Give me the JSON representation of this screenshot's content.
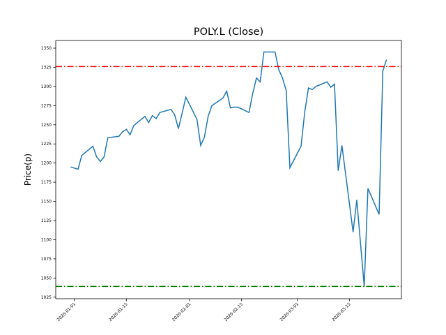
{
  "chart_data": {
    "type": "line",
    "title": "POLY.L (Close)",
    "y_label": "Price(p)",
    "x": [
      "2019-12-31",
      "2020-01-02",
      "2020-01-03",
      "2020-01-06",
      "2020-01-07",
      "2020-01-08",
      "2020-01-09",
      "2020-01-10",
      "2020-01-13",
      "2020-01-14",
      "2020-01-15",
      "2020-01-16",
      "2020-01-17",
      "2020-01-20",
      "2020-01-21",
      "2020-01-22",
      "2020-01-23",
      "2020-01-24",
      "2020-01-27",
      "2020-01-28",
      "2020-01-29",
      "2020-01-30",
      "2020-01-31",
      "2020-02-03",
      "2020-02-04",
      "2020-02-05",
      "2020-02-06",
      "2020-02-07",
      "2020-02-10",
      "2020-02-11",
      "2020-02-12",
      "2020-02-13",
      "2020-02-14",
      "2020-02-17",
      "2020-02-18",
      "2020-02-19",
      "2020-02-20",
      "2020-02-21",
      "2020-02-24",
      "2020-02-25",
      "2020-02-26",
      "2020-02-27",
      "2020-02-28",
      "2020-03-02",
      "2020-03-03",
      "2020-03-04",
      "2020-03-05",
      "2020-03-06",
      "2020-03-09",
      "2020-03-10",
      "2020-03-11",
      "2020-03-12",
      "2020-03-13",
      "2020-03-16",
      "2020-03-17",
      "2020-03-18",
      "2020-03-19",
      "2020-03-20",
      "2020-03-23",
      "2020-03-24",
      "2020-03-25"
    ],
    "series": [
      {
        "name": "Close",
        "color": "#1f77b4",
        "values": [
          1195,
          1192,
          1210,
          1222,
          1208,
          1202,
          1208,
          1233,
          1235,
          1241,
          1244,
          1237,
          1249,
          1261,
          1253,
          1262,
          1258,
          1266,
          1270,
          1263,
          1245,
          1265,
          1286,
          1257,
          1223,
          1234,
          1261,
          1275,
          1285,
          1294,
          1272,
          1273,
          1273,
          1266,
          1291,
          1311,
          1306,
          1345,
          1345,
          1322,
          1311,
          1295,
          1194,
          1222,
          1267,
          1298,
          1296,
          1300,
          1306,
          1299,
          1303,
          1190,
          1223,
          1110,
          1152,
          1095,
          1039,
          1167,
          1133,
          1320,
          1335
        ]
      }
    ],
    "hlines": [
      {
        "value": 1326,
        "color": "#ff0000"
      },
      {
        "value": 1039,
        "color": "#008000"
      }
    ],
    "xlim": [
      "2019-12-27",
      "2020-03-29"
    ],
    "xticks": [
      "2020-01-01",
      "2020-01-15",
      "2020-02-01",
      "2020-02-15",
      "2020-03-01",
      "2020-03-15"
    ],
    "ylim": [
      1023,
      1360
    ],
    "yticks": [
      1025,
      1050,
      1075,
      1100,
      1125,
      1150,
      1175,
      1200,
      1225,
      1250,
      1275,
      1300,
      1325,
      1350
    ]
  }
}
